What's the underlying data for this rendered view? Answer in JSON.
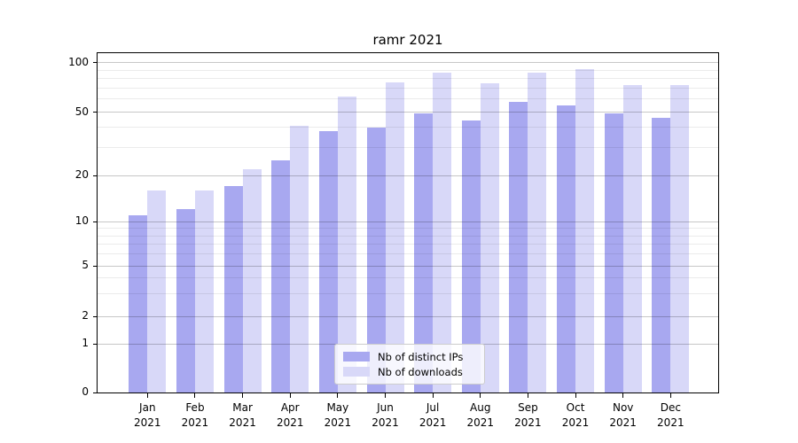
{
  "title": "ramr 2021",
  "chart_data": {
    "type": "bar",
    "title": "ramr 2021",
    "categories": [
      "Jan 2021",
      "Feb 2021",
      "Mar 2021",
      "Apr 2021",
      "May 2021",
      "Jun 2021",
      "Jul 2021",
      "Aug 2021",
      "Sep 2021",
      "Oct 2021",
      "Nov 2021",
      "Dec 2021"
    ],
    "series": [
      {
        "name": "Nb of distinct IPs",
        "color": "#a8a8f0",
        "values": [
          11,
          12,
          17,
          25,
          38,
          40,
          49,
          44,
          58,
          55,
          49,
          46
        ]
      },
      {
        "name": "Nb of downloads",
        "color": "#d8d8f8",
        "values": [
          16,
          16,
          22,
          41,
          62,
          76,
          87,
          75,
          87,
          91,
          73,
          73
        ]
      }
    ],
    "xlabel": "",
    "ylabel": "",
    "yscale": "symlog",
    "ylim": [
      0,
      113
    ],
    "y_ticks": [
      0,
      1,
      2,
      5,
      10,
      20,
      50,
      100
    ],
    "y_minor_gridlines": [
      3,
      4,
      6,
      7,
      8,
      9,
      30,
      40,
      60,
      70,
      80,
      90
    ],
    "grid": true,
    "legend_position": "lower center"
  }
}
